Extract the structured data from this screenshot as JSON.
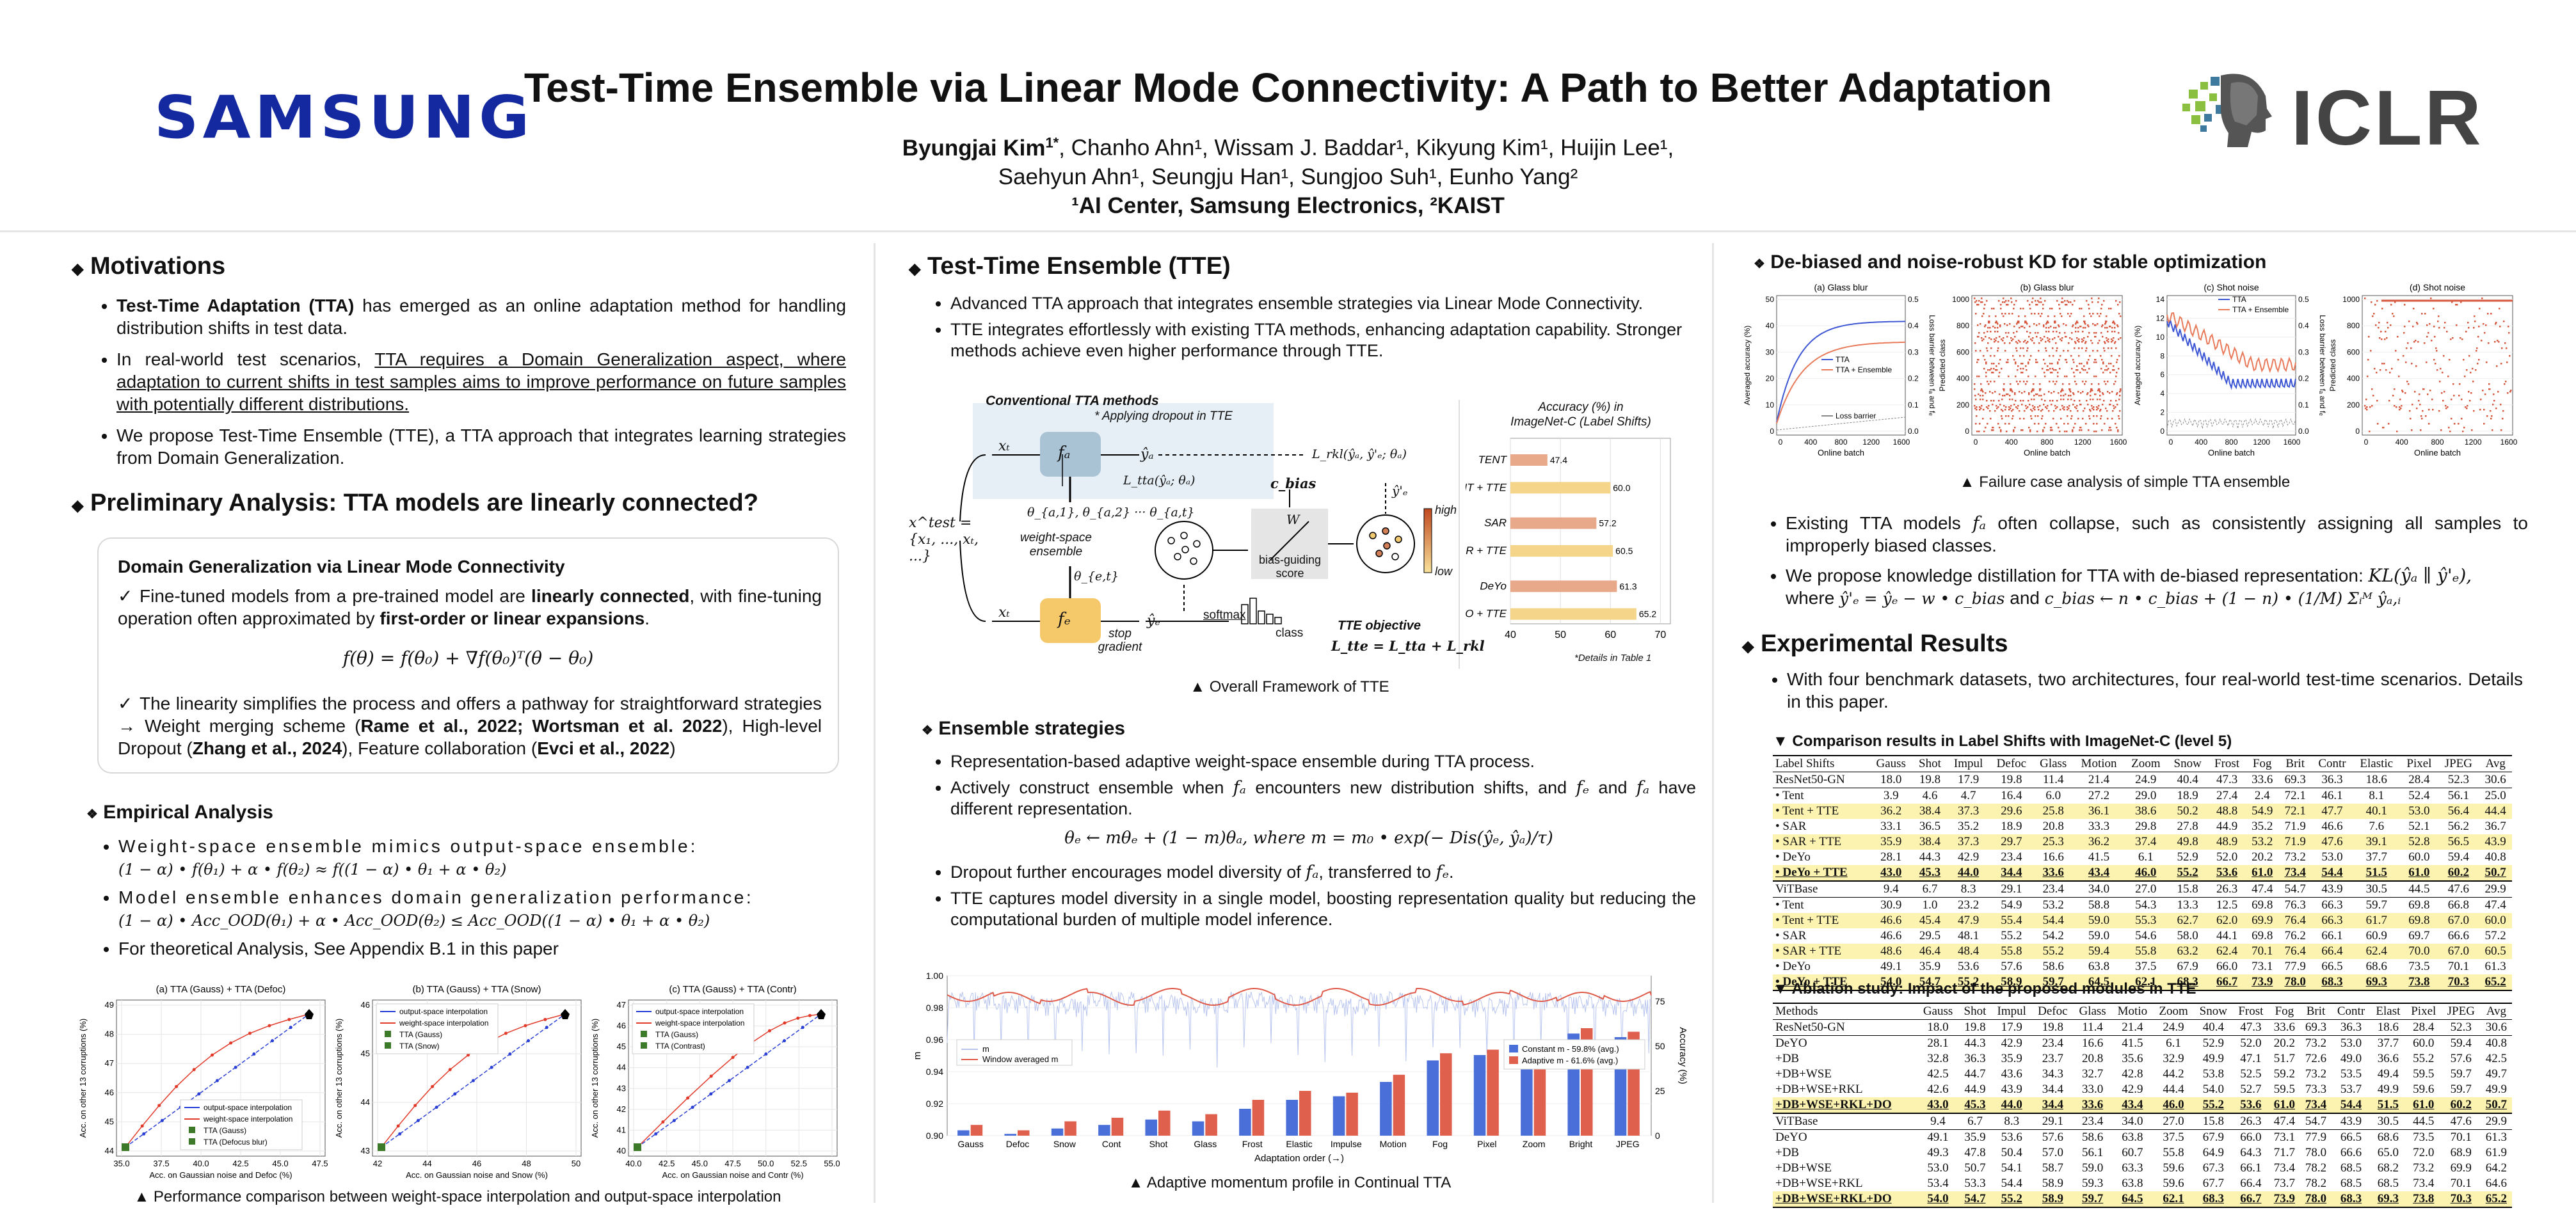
{
  "header": {
    "samsung_logo": "SAMSUNG",
    "title": "Test-Time Ensemble via Linear Mode Connectivity: A Path to Better Adaptation",
    "authors_line1_bold": "Byungjai Kim",
    "authors_line1_bold_sup": "1*",
    "authors_line1_rest": ", Chanho Ahn¹, Wissam J. Baddar¹, Kikyung Kim¹, Huijin Lee¹,",
    "authors_line2": "Saehyun Ahn¹, Seungju Han¹, Sungjoo Suh¹, Eunho Yang²",
    "affiliations": "¹AI Center, Samsung Electronics, ²KAIST",
    "iclr_logo": "ICLR"
  },
  "motivations": {
    "title": "Motivations",
    "b1_bold": "Test-Time Adaptation (TTA)",
    "b1_rest": " has emerged as an online adaptation method for handling distribution shifts in test data.",
    "b2_pre": "In real-world test scenarios, ",
    "b2_ul": "TTA requires a Domain Generalization aspect, where adaptation to current shifts in test samples aims to improve performance on future samples with potentially different distributions.",
    "b3": "We propose Test-Time Ensemble (TTE), a TTA approach that integrates learning strategies from Domain Generalization."
  },
  "prelim": {
    "title": "Preliminary Analysis: TTA models are linearly connected?",
    "box_title": "Domain Generalization via Linear Mode Connectivity",
    "c1_pre": "Fine-tuned models from a pre-trained model are ",
    "c1_b1": "linearly connected",
    "c1_mid": ", with fine-tuning operation often approximated by ",
    "c1_b2": "first-order or linear expansions",
    "c1_end": ".",
    "equation": "f(θ) = f(θ₀) + ∇f(θ₀)ᵀ(θ − θ₀)",
    "c2_pre": "The linearity simplifies the process and offers a pathway for straightforward strategies → Weight merging scheme (",
    "c2_ref1": "Rame et al., 2022; Wortsman et al. 2022",
    "c2_mid1": "), High-level Dropout (",
    "c2_ref2": "Zhang et al., 2024",
    "c2_mid2": "), Feature collaboration (",
    "c2_ref3": "Evci et al., 2022",
    "c2_end": ")"
  },
  "empirical": {
    "title": "Empirical Analysis",
    "b1_text": "Weight-space ensemble mimics output-space ensemble:",
    "b1_eq": "(1 − α) • f(θ₁) + α • f(θ₂) ≈ f((1 − α) • θ₁ + α • θ₂)",
    "b2_text": "Model ensemble enhances domain generalization performance:",
    "b2_eq": "(1 − α) • Acc_OOD(θ₁) + α • Acc_OOD(θ₂) ≤ Acc_OOD((1 − α) • θ₁ + α • θ₂)",
    "b3": "For theoretical Analysis, See Appendix B.1 in this paper",
    "caption": "▲ Performance comparison between weight-space interpolation and output-space interpolation"
  },
  "lmc_plots": [
    {
      "title": "(a) TTA (Gauss) + TTA (Defoc)",
      "xlabel": "Acc. on Gaussian noise and Defoc (%)",
      "ylabel": "Acc. on other 13 corruptions (%)",
      "xticks": [
        "35.0",
        "37.5",
        "40.0",
        "42.5",
        "45.0",
        "47.5"
      ],
      "yticks": [
        "49",
        "48",
        "47",
        "46",
        "45",
        "44"
      ],
      "legend": [
        "output-space interpolation",
        "weight-space interpolation",
        "TTA (Gauss)",
        "TTA (Defocus blur)"
      ]
    },
    {
      "title": "(b) TTA (Gauss) + TTA (Snow)",
      "xlabel": "Acc. on Gaussian noise and Snow (%)",
      "ylabel": "Acc. on other 13 corruptions (%)",
      "xticks": [
        "42",
        "44",
        "46",
        "48",
        "50"
      ],
      "yticks": [
        "46",
        "45",
        "44",
        "43"
      ],
      "legend": [
        "output-space interpolation",
        "weight-space interpolation",
        "TTA (Gauss)",
        "TTA (Snow)"
      ]
    },
    {
      "title": "(c) TTA (Gauss) + TTA (Contr)",
      "xlabel": "Acc. on Gaussian noise and Contr (%)",
      "ylabel": "Acc. on other 13 corruptions (%)",
      "xticks": [
        "40.0",
        "42.5",
        "45.0",
        "47.5",
        "50.0",
        "52.5",
        "55.0"
      ],
      "yticks": [
        "47",
        "46",
        "45",
        "44",
        "43",
        "42",
        "41",
        "40"
      ],
      "legend": [
        "output-space interpolation",
        "weight-space interpolation",
        "TTA (Gauss)",
        "TTA (Contrast)"
      ]
    }
  ],
  "tte": {
    "title": "Test-Time Ensemble (TTE)",
    "b1": "Advanced TTA approach that integrates ensemble strategies via Linear Mode Connectivity.",
    "b2": "TTE integrates effortlessly with existing TTA methods, enhancing adaptation capability. Stronger methods achieve even higher performance through TTE.",
    "fw_conventional": "Conventional TTA methods",
    "fw_dropout": "* Applying dropout in TTE",
    "fw_ws": "weight-space ensemble",
    "fw_bias": "bias-guiding score",
    "fw_softmax": "softmax",
    "fw_class": "class",
    "fw_stop": "stop gradient",
    "fw_obj": "TTE objective",
    "fw_obj_eq": "L_tte = L_tta + L_rkl",
    "fw_high": "high",
    "fw_low": "low",
    "fw_xtest": "x^test = {x₁, ..., xₜ, ...}",
    "fw_cbias": "c_bias",
    "fw_W": "W",
    "fw_ltta": "L_tta(ŷₐ; θₐ)",
    "fw_lrkl": "L_rkl(ŷₐ, ŷ'ₑ; θₐ)",
    "fw_theta": "θ_{a,1}, θ_{a,2} ··· θ_{a,t}",
    "fw_thetae": "θ_{e,t}",
    "fw_fa": "fₐ",
    "fw_fe": "fₑ",
    "fw_xt1": "xₜ",
    "fw_xt2": "xₜ",
    "fw_ya": "ŷₐ",
    "fw_ye": "ŷₑ",
    "fw_ye2": "ŷ'ₑ",
    "acc_title1": "Accuracy (%) in",
    "acc_title2": "ImageNet-C (Label Shifts)",
    "acc_note": "*Details in Table 1",
    "caption": "▲ Overall Framework of TTE"
  },
  "acc_chart": {
    "type": "bar",
    "categories": [
      "TENT",
      "TENT + TTE",
      "SAR",
      "SAR + TTE",
      "DeYo",
      "DeYO + TTE"
    ],
    "values": [
      47.4,
      60.0,
      57.2,
      60.5,
      61.3,
      65.2
    ],
    "xticks": [
      40,
      50,
      60,
      70
    ],
    "xlim": [
      40,
      72
    ]
  },
  "ens": {
    "title": "Ensemble strategies",
    "b1": "Representation-based adaptive weight-space ensemble during TTA process.",
    "b2_pre": "Actively construct ensemble when ",
    "b2_fa1": "fₐ",
    "b2_mid1": " encounters new distribution shifts, and ",
    "b2_fe": "fₑ",
    "b2_and": " and ",
    "b2_fa2": "fₐ",
    "b2_end": " have different representation.",
    "equation": "θₑ ← mθₑ + (1 − m)θₐ, where m = m₀ • exp(− Dis(ŷₑ, ŷₐ)/τ)",
    "b3_pre": "Dropout further encourages model diversity of ",
    "b3_fa": "fₐ",
    "b3_mid": ", transferred to ",
    "b3_fe": "fₑ",
    "b3_end": ".",
    "b4": "TTE captures model diversity in a single model, boosting representation quality but reducing the computational burden of multiple model inference.",
    "caption": "▲ Adaptive momentum profile in Continual TTA"
  },
  "momentum_chart": {
    "type": "bar",
    "categories": [
      "Gauss",
      "Defoc",
      "Snow",
      "Cont",
      "Shot",
      "Glass",
      "Frost",
      "Elastic",
      "Impulse",
      "Motion",
      "Fog",
      "Pixel",
      "Zoom",
      "Bright",
      "JPEG"
    ],
    "series": [
      {
        "name": "Constant m - 59.8% (avg.)",
        "values": [
          3,
          1,
          4,
          6,
          9,
          8,
          15,
          20,
          22,
          30,
          42,
          45,
          38,
          57,
          55
        ]
      },
      {
        "name": "Adaptive m - 61.6% (avg.)",
        "values": [
          6,
          3,
          8,
          10,
          14,
          12,
          20,
          25,
          24,
          34,
          46,
          48,
          41,
          60,
          58
        ]
      }
    ],
    "xlabel": "Adaptation order (→)",
    "ylabel": "m",
    "ylabel2": "Accuracy (%)",
    "yticks": [
      "1.00",
      "0.98",
      "0.96",
      "0.94",
      "0.92",
      "0.90"
    ],
    "yticks2": [
      "75",
      "50",
      "25",
      "0"
    ],
    "legend_line": "Window averaged m",
    "legend_m": "m"
  },
  "kd": {
    "title": "De-biased and noise-robust KD for stable optimization",
    "caption": "▲ Failure case analysis of simple TTA ensemble",
    "b1_pre": "Existing TTA models ",
    "b1_fa": "fₐ",
    "b1_rest": " often collapse, such as consistently assigning all samples to improperly biased classes.",
    "b2_pre": "We propose knowledge distillation for TTA with de-biased representation: ",
    "b2_eq1": "KL(ŷₐ ∥ ŷ'ₑ),",
    "b2_where": "where ",
    "b2_eq2": "ŷ'ₑ = ŷₑ − w • c_bias",
    "b2_and": " and ",
    "b2_eq3": "c_bias ← n • c_bias + (1 − n) • (1/M) Σᵢᴹ ŷₐ,ᵢ"
  },
  "failure_plots": [
    {
      "title": "(a) Glass blur",
      "xlabel": "Online batch",
      "ylabel": "Averaged accuracy (%)",
      "ylabel2": "Loss barrier between fₐ and fₑ",
      "legend": [
        "TTA",
        "TTA + Ensemble",
        "Loss barrier"
      ],
      "xticks": [
        "0",
        "400",
        "800",
        "1200",
        "1600"
      ],
      "yticks": [
        "50",
        "40",
        "30",
        "20",
        "10",
        "0"
      ],
      "yticks2": [
        "0.5",
        "0.4",
        "0.3",
        "0.2",
        "0.1",
        "0.0"
      ]
    },
    {
      "title": "(b) Glass blur",
      "xlabel": "Online batch",
      "ylabel": "Predicted class",
      "xticks": [
        "0",
        "400",
        "800",
        "1200",
        "1600"
      ],
      "yticks": [
        "1000",
        "800",
        "600",
        "400",
        "200",
        "0"
      ]
    },
    {
      "title": "(c) Shot noise",
      "xlabel": "Online batch",
      "ylabel": "Averaged accuracy (%)",
      "ylabel2": "Loss barrier between fₐ and fₑ",
      "legend": [
        "TTA",
        "TTA + Ensemble"
      ],
      "xticks": [
        "0",
        "400",
        "800",
        "1200",
        "1600"
      ],
      "yticks": [
        "14",
        "12",
        "10",
        "8",
        "6",
        "4",
        "2",
        "0"
      ],
      "yticks2": [
        "0.5",
        "0.4",
        "0.3",
        "0.2",
        "0.1",
        "0.0"
      ]
    },
    {
      "title": "(d) Shot noise",
      "xlabel": "Online batch",
      "ylabel": "Predicted class",
      "xticks": [
        "0",
        "400",
        "800",
        "1200",
        "1600"
      ],
      "yticks": [
        "1000",
        "800",
        "600",
        "400",
        "200",
        "0"
      ]
    }
  ],
  "exp": {
    "title": "Experimental Results",
    "b1": "With four benchmark datasets, two architectures, four real-world test-time scenarios. Details in this paper.",
    "t1_caption": "▼ Comparison results in Label Shifts with ImageNet-C (level 5)",
    "t2_caption": "▼ Ablation study: Impact of the proposed modules in TTE"
  },
  "table1": {
    "headers": [
      "Label Shifts",
      "Gauss",
      "Shot",
      "Impul",
      "Defoc",
      "Glass",
      "Motion",
      "Zoom",
      "Snow",
      "Frost",
      "Fog",
      "Brit",
      "Contr",
      "Elastic",
      "Pixel",
      "JPEG",
      "Avg"
    ],
    "group1": {
      "name": "ResNet50-GN",
      "values": [
        "18.0",
        "19.8",
        "17.9",
        "19.8",
        "11.4",
        "21.4",
        "24.9",
        "40.4",
        "47.3",
        "33.6",
        "69.3",
        "36.3",
        "18.6",
        "28.4",
        "52.3",
        "30.6"
      ]
    },
    "group1_rows": [
      [
        "• Tent",
        "3.9",
        "4.6",
        "4.7",
        "16.4",
        "6.0",
        "27.2",
        "29.0",
        "18.9",
        "27.4",
        "2.4",
        "72.1",
        "46.1",
        "8.1",
        "52.4",
        "56.1",
        "25.0"
      ],
      [
        "• Tent + TTE",
        "36.2",
        "38.4",
        "37.3",
        "29.6",
        "25.8",
        "36.1",
        "38.6",
        "50.2",
        "48.8",
        "54.9",
        "72.1",
        "47.7",
        "40.1",
        "53.0",
        "56.4",
        "44.4"
      ],
      [
        "• SAR",
        "33.1",
        "36.5",
        "35.2",
        "18.9",
        "20.8",
        "33.3",
        "29.8",
        "27.8",
        "44.9",
        "35.2",
        "71.9",
        "46.6",
        "7.6",
        "52.1",
        "56.2",
        "36.7"
      ],
      [
        "• SAR + TTE",
        "35.9",
        "38.4",
        "37.3",
        "29.7",
        "25.3",
        "36.2",
        "37.4",
        "49.8",
        "48.9",
        "53.2",
        "71.9",
        "47.6",
        "39.1",
        "52.8",
        "56.5",
        "43.9"
      ],
      [
        "• DeYo",
        "28.1",
        "44.3",
        "42.9",
        "23.4",
        "16.6",
        "41.5",
        "6.1",
        "52.9",
        "52.0",
        "20.2",
        "73.2",
        "53.0",
        "37.7",
        "60.0",
        "59.4",
        "40.8"
      ],
      [
        "• DeYo + TTE",
        "43.0",
        "45.3",
        "44.0",
        "34.4",
        "33.6",
        "43.4",
        "46.0",
        "55.2",
        "53.6",
        "61.0",
        "73.4",
        "54.4",
        "51.5",
        "61.0",
        "60.2",
        "50.7"
      ]
    ],
    "group2": {
      "name": "ViTBase",
      "values": [
        "9.4",
        "6.7",
        "8.3",
        "29.1",
        "23.4",
        "34.0",
        "27.0",
        "15.8",
        "26.3",
        "47.4",
        "54.7",
        "43.9",
        "30.5",
        "44.5",
        "47.6",
        "29.9"
      ]
    },
    "group2_rows": [
      [
        "• Tent",
        "30.9",
        "1.0",
        "23.2",
        "54.9",
        "53.2",
        "58.8",
        "54.3",
        "13.3",
        "12.5",
        "69.8",
        "76.3",
        "66.3",
        "59.7",
        "69.8",
        "66.8",
        "47.4"
      ],
      [
        "• Tent + TTE",
        "46.6",
        "45.4",
        "47.9",
        "55.4",
        "54.4",
        "59.0",
        "55.3",
        "62.7",
        "62.0",
        "69.9",
        "76.4",
        "66.3",
        "61.7",
        "69.8",
        "67.0",
        "60.0"
      ],
      [
        "• SAR",
        "46.6",
        "29.5",
        "48.1",
        "55.2",
        "54.2",
        "59.0",
        "54.6",
        "58.0",
        "44.1",
        "69.8",
        "76.2",
        "66.1",
        "60.9",
        "69.7",
        "66.6",
        "57.2"
      ],
      [
        "• SAR + TTE",
        "48.6",
        "46.4",
        "48.4",
        "55.8",
        "55.2",
        "59.4",
        "55.8",
        "63.2",
        "62.4",
        "70.1",
        "76.4",
        "66.4",
        "62.4",
        "70.0",
        "67.0",
        "60.5"
      ],
      [
        "• DeYo",
        "49.1",
        "35.9",
        "53.6",
        "57.6",
        "58.6",
        "63.8",
        "37.5",
        "67.9",
        "66.0",
        "73.1",
        "77.9",
        "66.5",
        "68.6",
        "73.5",
        "70.1",
        "61.3"
      ],
      [
        "• DeYo + TTE",
        "54.0",
        "54.7",
        "55.2",
        "58.9",
        "59.7",
        "64.5",
        "62.1",
        "68.3",
        "66.7",
        "73.9",
        "78.0",
        "68.3",
        "69.3",
        "73.8",
        "70.3",
        "65.2"
      ]
    ]
  },
  "table2": {
    "headers": [
      "Methods",
      "Gauss",
      "Shot",
      "Impul",
      "Defoc",
      "Glass",
      "Motio",
      "Zoom",
      "Snow",
      "Frost",
      "Fog",
      "Brit",
      "Contr",
      "Elast",
      "Pixel",
      "JPEG",
      "Avg"
    ],
    "group1": {
      "name": "ResNet50-GN",
      "values": [
        "18.0",
        "19.8",
        "17.9",
        "19.8",
        "11.4",
        "21.4",
        "24.9",
        "40.4",
        "47.3",
        "33.6",
        "69.3",
        "36.3",
        "18.6",
        "28.4",
        "52.3",
        "30.6"
      ]
    },
    "group1_rows": [
      [
        "DeYO",
        "28.1",
        "44.3",
        "42.9",
        "23.4",
        "16.6",
        "41.5",
        "6.1",
        "52.9",
        "52.0",
        "20.2",
        "73.2",
        "53.0",
        "37.7",
        "60.0",
        "59.4",
        "40.8"
      ],
      [
        "+DB",
        "32.8",
        "36.3",
        "35.9",
        "23.7",
        "20.8",
        "35.6",
        "32.9",
        "49.9",
        "47.1",
        "51.7",
        "72.6",
        "49.0",
        "36.6",
        "55.2",
        "57.6",
        "42.5"
      ],
      [
        "+DB+WSE",
        "42.5",
        "44.7",
        "43.6",
        "34.3",
        "32.7",
        "42.8",
        "44.2",
        "53.8",
        "52.5",
        "59.2",
        "73.2",
        "53.5",
        "49.4",
        "59.5",
        "59.7",
        "49.7"
      ],
      [
        "+DB+WSE+RKL",
        "42.6",
        "44.9",
        "43.9",
        "34.4",
        "33.0",
        "42.9",
        "44.4",
        "54.0",
        "52.7",
        "59.5",
        "73.3",
        "53.7",
        "49.9",
        "59.6",
        "59.7",
        "49.9"
      ],
      [
        "+DB+WSE+RKL+DO",
        "43.0",
        "45.3",
        "44.0",
        "34.4",
        "33.6",
        "43.4",
        "46.0",
        "55.2",
        "53.6",
        "61.0",
        "73.4",
        "54.4",
        "51.5",
        "61.0",
        "60.2",
        "50.7"
      ]
    ],
    "group2": {
      "name": "ViTBase",
      "values": [
        "9.4",
        "6.7",
        "8.3",
        "29.1",
        "23.4",
        "34.0",
        "27.0",
        "15.8",
        "26.3",
        "47.4",
        "54.7",
        "43.9",
        "30.5",
        "44.5",
        "47.6",
        "29.9"
      ]
    },
    "group2_rows": [
      [
        "DeYO",
        "49.1",
        "35.9",
        "53.6",
        "57.6",
        "58.6",
        "63.8",
        "37.5",
        "67.9",
        "66.0",
        "73.1",
        "77.9",
        "66.5",
        "68.6",
        "73.5",
        "70.1",
        "61.3"
      ],
      [
        "+DB",
        "49.3",
        "47.8",
        "50.4",
        "57.0",
        "56.1",
        "60.7",
        "55.8",
        "64.9",
        "64.3",
        "71.7",
        "78.0",
        "66.6",
        "65.0",
        "72.0",
        "68.9",
        "61.9"
      ],
      [
        "+DB+WSE",
        "53.0",
        "50.7",
        "54.1",
        "58.7",
        "59.0",
        "63.3",
        "59.6",
        "67.3",
        "66.1",
        "73.4",
        "78.2",
        "68.5",
        "68.2",
        "73.2",
        "69.9",
        "64.2"
      ],
      [
        "+DB+WSE+RKL",
        "53.4",
        "53.3",
        "54.4",
        "58.9",
        "59.3",
        "63.8",
        "59.6",
        "67.7",
        "66.4",
        "73.7",
        "78.2",
        "68.5",
        "68.5",
        "73.4",
        "70.1",
        "64.6"
      ],
      [
        "+DB+WSE+RKL+DO",
        "54.0",
        "54.7",
        "55.2",
        "58.9",
        "59.7",
        "64.5",
        "62.1",
        "68.3",
        "66.7",
        "73.9",
        "78.0",
        "68.3",
        "69.3",
        "73.8",
        "70.3",
        "65.2"
      ]
    ]
  }
}
